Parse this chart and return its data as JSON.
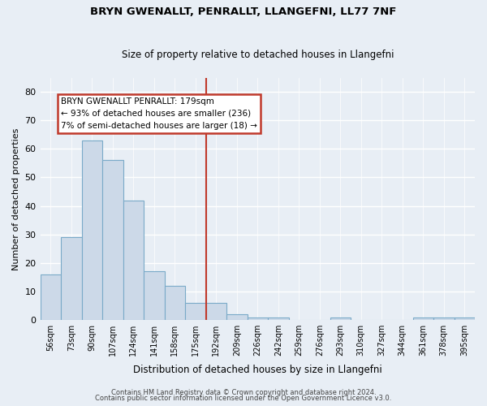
{
  "title": "BRYN GWENALLT, PENRALLT, LLANGEFNI, LL77 7NF",
  "subtitle": "Size of property relative to detached houses in Llangefni",
  "xlabel": "Distribution of detached houses by size in Llangefni",
  "ylabel": "Number of detached properties",
  "categories": [
    "56sqm",
    "73sqm",
    "90sqm",
    "107sqm",
    "124sqm",
    "141sqm",
    "158sqm",
    "175sqm",
    "192sqm",
    "209sqm",
    "226sqm",
    "242sqm",
    "259sqm",
    "276sqm",
    "293sqm",
    "310sqm",
    "327sqm",
    "344sqm",
    "361sqm",
    "378sqm",
    "395sqm"
  ],
  "values": [
    16,
    29,
    63,
    56,
    42,
    17,
    12,
    6,
    6,
    2,
    1,
    1,
    0,
    0,
    1,
    0,
    0,
    0,
    1,
    1,
    1
  ],
  "bar_color": "#ccd9e8",
  "bar_edge_color": "#7aaac8",
  "vline_x": 7.5,
  "vline_color": "#c0392b",
  "annotation_text": "BRYN GWENALLT PENRALLT: 179sqm\n← 93% of detached houses are smaller (236)\n7% of semi-detached houses are larger (18) →",
  "annotation_box_facecolor": "#ffffff",
  "annotation_box_edgecolor": "#c0392b",
  "ylim": [
    0,
    85
  ],
  "yticks": [
    0,
    10,
    20,
    30,
    40,
    50,
    60,
    70,
    80
  ],
  "bg_color": "#e8eef5",
  "grid_color": "#ffffff",
  "footer_line1": "Contains HM Land Registry data © Crown copyright and database right 2024.",
  "footer_line2": "Contains public sector information licensed under the Open Government Licence v3.0."
}
